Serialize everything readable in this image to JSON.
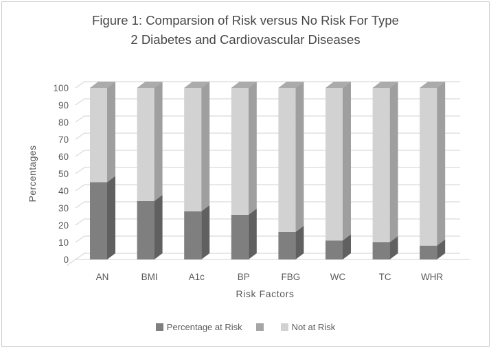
{
  "figure": {
    "title_lines": [
      "Figure 1: Comparsion of Risk versus No Risk For Type",
      "2 Diabetes and Cardiovascular Diseases"
    ]
  },
  "axes": {
    "y_title": "Percentages",
    "x_title": "Risk Factors"
  },
  "legend": {
    "items": [
      {
        "label": "Percentage at Risk",
        "color": "#7f7f7f"
      },
      {
        "label": "",
        "color": "#a6a6a6"
      },
      {
        "label": "Not at Risk",
        "color": "#d2d2d2"
      }
    ]
  },
  "chart_data": {
    "type": "bar",
    "subtype": "3d-stacked-column",
    "title": "Figure 1: Comparsion of Risk versus No Risk For Type 2 Diabetes and Cardiovascular Diseases",
    "xlabel": "Risk Factors",
    "ylabel": "Percentages",
    "categories": [
      "AN",
      "BMI",
      "A1c",
      "BP",
      "FBG",
      "WC",
      "TC",
      "WHR"
    ],
    "series": [
      {
        "name": "Percentage at Risk",
        "values": [
          45,
          34,
          28,
          26,
          16,
          11,
          10,
          8
        ],
        "color": "#7f7f7f"
      },
      {
        "name": "",
        "values": [
          0,
          0,
          0,
          0,
          0,
          0,
          0,
          0
        ],
        "color": "#a6a6a6"
      },
      {
        "name": "Not at Risk",
        "values": [
          55,
          66,
          72,
          74,
          84,
          89,
          90,
          92
        ],
        "color": "#d2d2d2"
      }
    ],
    "ylim": [
      0,
      100
    ],
    "ytick_step": 10,
    "yticks": [
      0,
      10,
      20,
      30,
      40,
      50,
      60,
      70,
      80,
      90,
      100
    ],
    "grid": true,
    "legend_position": "bottom",
    "colors": {
      "text": "#595959",
      "title_text": "#474747",
      "gridline": "#d9d9d9",
      "dark_front": "#7f7f7f",
      "dark_side": "#606060",
      "light_front": "#d2d2d2",
      "light_side": "#9f9f9f",
      "light_top": "#ababab",
      "frame_border": "#c9c9c9"
    }
  }
}
